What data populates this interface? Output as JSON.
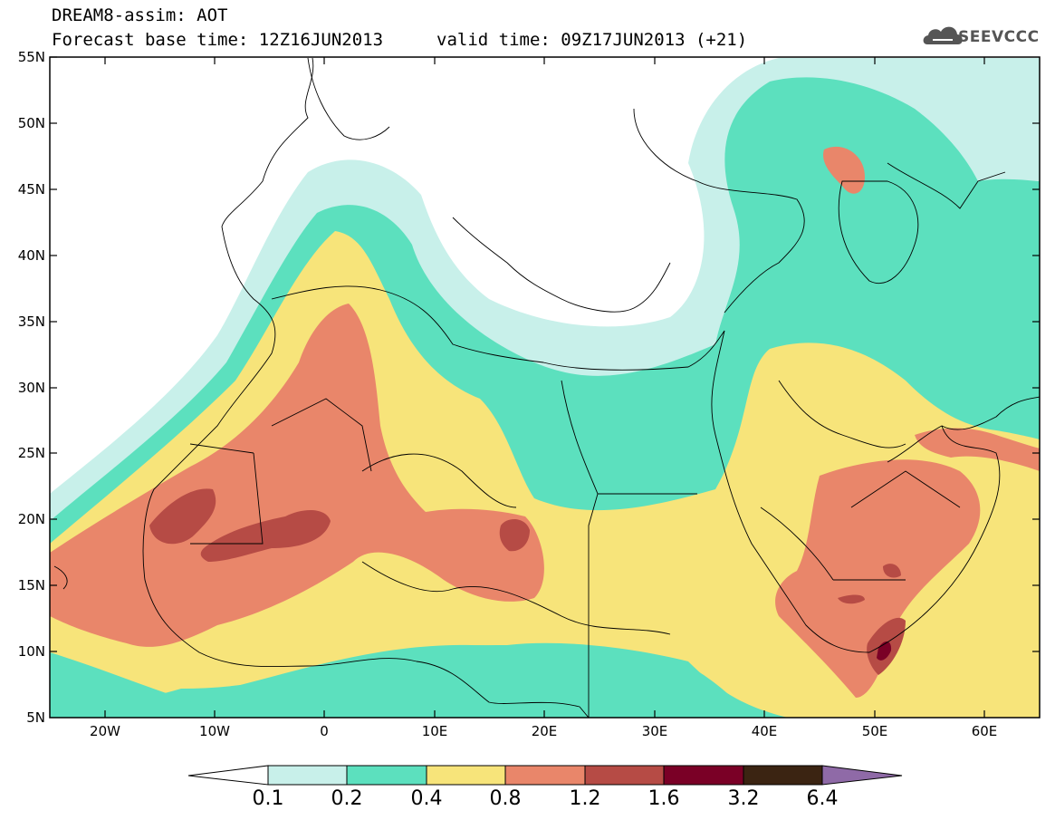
{
  "title": {
    "line1": "DREAM8-assim: AOT",
    "line2": "Forecast base time: 12Z16JUN2013",
    "valid": "valid time: 09Z17JUN2013 (+21)"
  },
  "logo": {
    "text": "SEEVCCC",
    "icon": "cloud-icon"
  },
  "axes": {
    "lat_labels": [
      "55N",
      "50N",
      "45N",
      "40N",
      "35N",
      "30N",
      "25N",
      "20N",
      "15N",
      "10N",
      "5N"
    ],
    "lon_labels": [
      "20W",
      "10W",
      "0",
      "10E",
      "20E",
      "30E",
      "40E",
      "50E",
      "60E"
    ]
  },
  "colorbar": {
    "labels": [
      "0.1",
      "0.2",
      "0.4",
      "0.8",
      "1.2",
      "1.6",
      "3.2",
      "6.4"
    ],
    "colors": [
      "#ffffff",
      "#c8f0ea",
      "#5ce0be",
      "#f7e47a",
      "#e9866a",
      "#b64b45",
      "#7a0026",
      "#3b2412",
      "#8f6aa7"
    ]
  },
  "field_colors": {
    "c01": "#c8f0ea",
    "c02": "#5ce0be",
    "c04": "#f7e47a",
    "c08": "#e9866a",
    "c12": "#b64b45",
    "c16": "#7a0026"
  }
}
